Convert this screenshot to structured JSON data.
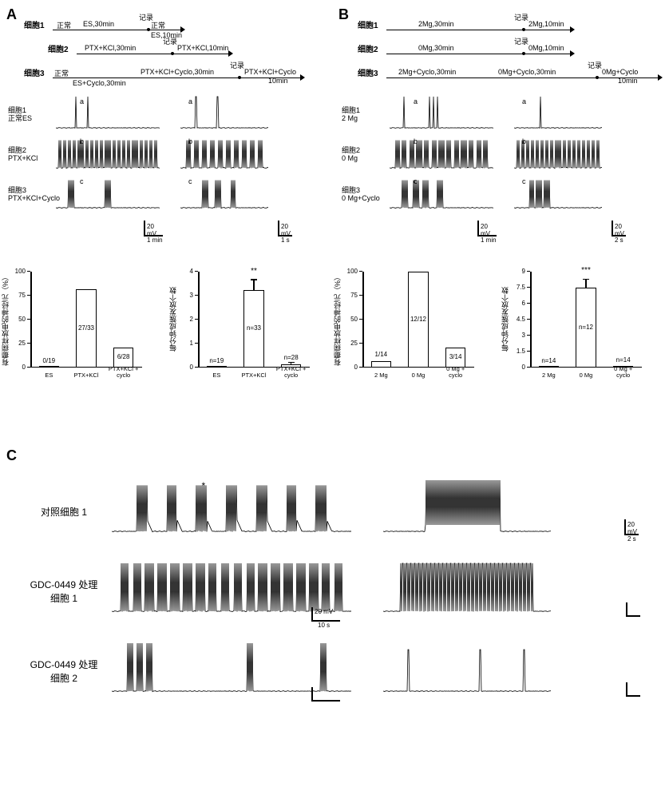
{
  "panelA": {
    "label": "A",
    "protocols": {
      "cell1": {
        "label": "细胞1",
        "segs": [
          {
            "text": "正常",
            "top_label": "ES,30min"
          },
          {
            "text": "正常",
            "top_label": "ES,10min",
            "rec": "记录"
          }
        ]
      },
      "cell2": {
        "label": "细胞2",
        "segs": [
          {
            "text": "PTX+KCl,30min"
          },
          {
            "text": "PTX+KCl,10min",
            "rec": "记录"
          }
        ]
      },
      "cell3": {
        "label": "细胞3",
        "segs": [
          {
            "text": "正常",
            "top_label": "ES+Cyclo,30min"
          },
          {
            "text": "PTX+KCl+Cyclo,30min"
          },
          {
            "text": "PTX+KCl+Cyclo 10min",
            "rec": "记录"
          }
        ]
      }
    },
    "traces": [
      {
        "label_top": "细胞1",
        "label_bot": "正常ES",
        "tag": "a",
        "pattern": "spikes",
        "spike_times": [
          25,
          40
        ],
        "spike_times2": [
          18,
          42
        ]
      },
      {
        "label_top": "细胞2",
        "label_bot": "PTX+KCl",
        "tag": "b",
        "pattern": "dense_bursts",
        "bursts": 22,
        "bursts2": 10
      },
      {
        "label_top": "细胞3",
        "label_bot": "PTX+KCl+Cyclo",
        "tag": "c",
        "pattern": "sparse_bursts",
        "bursts": [
          15,
          50
        ],
        "bursts2": [
          28,
          42,
          60
        ]
      }
    ],
    "scale": {
      "vy": "20 mV",
      "vx_main": "1 min",
      "vx_zoom": "1 s"
    },
    "bar1": {
      "ylabel": "有癫痫样放电的神经元（%）",
      "ymax": 100,
      "yticks": [
        0,
        25,
        50,
        75,
        100
      ],
      "cats": [
        "ES",
        "PTX+KCl",
        "PTX+KCl + cyclo"
      ],
      "vals": [
        0,
        82,
        21
      ],
      "inner": [
        "0/19",
        "27/33",
        "6/28"
      ]
    },
    "bar2": {
      "ylabel": "每分钟成簇发放个数",
      "ymax": 4.0,
      "yticks": [
        0,
        1,
        2,
        3,
        4
      ],
      "cats": [
        "ES",
        "PTX+KCl",
        "PTX+KCl + cyclo"
      ],
      "vals": [
        0,
        3.25,
        0.15
      ],
      "err": [
        0,
        0.4,
        0.05
      ],
      "inner": [
        "n=19",
        "n=33",
        "n=28"
      ],
      "sig": "**"
    }
  },
  "panelB": {
    "label": "B",
    "protocols": {
      "cell1": {
        "label": "细胞1",
        "segs": [
          {
            "text": "2Mg,30min"
          },
          {
            "text": "2Mg,10min",
            "rec": "记录"
          }
        ]
      },
      "cell2": {
        "label": "细胞2",
        "segs": [
          {
            "text": "0Mg,30min"
          },
          {
            "text": "0Mg,10min",
            "rec": "记录"
          }
        ]
      },
      "cell3": {
        "label": "细胞3",
        "segs": [
          {
            "text": "2Mg+Cyclo,30min"
          },
          {
            "text": "0Mg+Cyclo,30min"
          },
          {
            "text": "0Mg+Cyclo 10min",
            "rec": "记录"
          }
        ]
      }
    },
    "traces": [
      {
        "label_top": "细胞1",
        "label_bot": "2 Mg",
        "tag": "a",
        "pattern": "spikes",
        "spike_times": [
          18,
          50,
          55,
          60
        ],
        "spike_times2": [
          30
        ]
      },
      {
        "label_top": "细胞2",
        "label_bot": "0 Mg",
        "tag": "b",
        "pattern": "dense_bursts",
        "bursts": 13,
        "bursts2": 18
      },
      {
        "label_top": "细胞3",
        "label_bot": "0 Mg+Cyclo",
        "tag": "c",
        "pattern": "sparse_bursts",
        "bursts": [
          15,
          25,
          35,
          48
        ],
        "bursts2": [
          20,
          28,
          38
        ]
      }
    ],
    "scale": {
      "vy": "20 mV",
      "vx_main": "1 min",
      "vx_zoom": "2 s"
    },
    "bar1": {
      "ylabel": "有癫痫样放电的神经元（%）",
      "ymax": 100,
      "yticks": [
        0,
        25,
        50,
        75,
        100
      ],
      "cats": [
        "2 Mg",
        "0 Mg",
        "0 Mg + cyclo"
      ],
      "vals": [
        7,
        100,
        21
      ],
      "inner": [
        "1/14",
        "12/12",
        "3/14"
      ]
    },
    "bar2": {
      "ylabel": "每分钟成簇发放个数",
      "ymax": 9.0,
      "yticks": [
        0,
        1.5,
        3.0,
        4.5,
        6.0,
        7.5,
        9.0
      ],
      "cats": [
        "2 Mg",
        "0 Mg",
        "0 Mg + cyclo"
      ],
      "vals": [
        0,
        7.5,
        0.1
      ],
      "err": [
        0,
        0.75,
        0
      ],
      "inner": [
        "n=14",
        "n=12",
        "n=14"
      ],
      "sig": "***"
    }
  },
  "panelC": {
    "label": "C",
    "rows": [
      {
        "label": "对照细胞 1",
        "pattern": "periodic_bursts_star",
        "bursts": 7,
        "star_at": 3,
        "zoom_pattern": "tight_burst"
      },
      {
        "label": "GDC-0449 处理\n细胞 1",
        "pattern": "many_bursts",
        "bursts": 18,
        "zoom_pattern": "barrage"
      },
      {
        "label": "GDC-0449 处理\n细胞 2",
        "pattern": "few_bursts",
        "burst_positions": [
          20,
          30,
          40,
          150,
          230
        ],
        "zoom_pattern": "sparse_spikes"
      }
    ],
    "scale": {
      "main_y": "20 mV",
      "main_x": "10 s",
      "zoom_y": "20 mV",
      "zoom_x": "2 s"
    }
  },
  "colors": {
    "line": "#000000",
    "bg": "#ffffff"
  }
}
